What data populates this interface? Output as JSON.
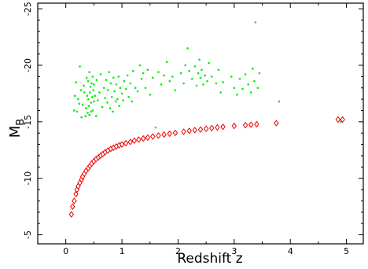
{
  "chart_data": {
    "type": "scatter",
    "title": "",
    "xlabel": "Redshift  z",
    "ylabel": "M",
    "ylabel_subscript": "B",
    "xlim": [
      -0.5,
      5.3
    ],
    "ylim": [
      -4.2,
      -25.5
    ],
    "y_axis_inverted": true,
    "grid": false,
    "legend": "none",
    "x_ticks": [
      0,
      1,
      2,
      3,
      4,
      5
    ],
    "x_tick_labels": [
      "0",
      "1",
      "2",
      "3",
      "4",
      "5"
    ],
    "y_ticks": [
      -5,
      -10,
      -15,
      -20,
      -25
    ],
    "y_tick_labels": [
      "-5",
      "-10",
      "-15",
      "-20",
      "-25"
    ],
    "series": [
      {
        "color": "#00ee00",
        "marker": "dot",
        "values": [
          [
            0.15,
            -16.0
          ],
          [
            0.16,
            -17.3
          ],
          [
            0.18,
            -18.5
          ],
          [
            0.2,
            -15.9
          ],
          [
            0.22,
            -17.0
          ],
          [
            0.24,
            -16.6
          ],
          [
            0.25,
            -19.9
          ],
          [
            0.27,
            -17.8
          ],
          [
            0.28,
            -15.4
          ],
          [
            0.3,
            -16.5
          ],
          [
            0.32,
            -18.2
          ],
          [
            0.33,
            -17.6
          ],
          [
            0.35,
            -15.5
          ],
          [
            0.36,
            -16.2
          ],
          [
            0.37,
            -18.9
          ],
          [
            0.38,
            -17.3
          ],
          [
            0.39,
            -15.8
          ],
          [
            0.4,
            -17.0
          ],
          [
            0.4,
            -18.6
          ],
          [
            0.41,
            -16.4
          ],
          [
            0.42,
            -19.4
          ],
          [
            0.42,
            -15.6
          ],
          [
            0.43,
            -17.6
          ],
          [
            0.44,
            -18.1
          ],
          [
            0.45,
            -16.7
          ],
          [
            0.45,
            -15.9
          ],
          [
            0.46,
            -18.4
          ],
          [
            0.47,
            -17.2
          ],
          [
            0.48,
            -19.0
          ],
          [
            0.48,
            -16.0
          ],
          [
            0.49,
            -17.8
          ],
          [
            0.5,
            -16.8
          ],
          [
            0.5,
            -18.3
          ],
          [
            0.52,
            -17.3
          ],
          [
            0.54,
            -15.5
          ],
          [
            0.55,
            -18.7
          ],
          [
            0.57,
            -16.9
          ],
          [
            0.6,
            -17.6
          ],
          [
            0.62,
            -19.2
          ],
          [
            0.65,
            -16.3
          ],
          [
            0.68,
            -18.0
          ],
          [
            0.7,
            -17.1
          ],
          [
            0.72,
            -18.7
          ],
          [
            0.74,
            -16.7
          ],
          [
            0.75,
            -17.8
          ],
          [
            0.77,
            -19.4
          ],
          [
            0.79,
            -16.2
          ],
          [
            0.8,
            -18.4
          ],
          [
            0.82,
            -17.2
          ],
          [
            0.84,
            -15.9
          ],
          [
            0.85,
            -18.9
          ],
          [
            0.87,
            -17.7
          ],
          [
            0.89,
            -16.8
          ],
          [
            0.9,
            -18.3
          ],
          [
            0.92,
            -17.0
          ],
          [
            0.94,
            -19.0
          ],
          [
            0.95,
            -16.4
          ],
          [
            0.97,
            -18.0
          ],
          [
            1.0,
            -17.5
          ],
          [
            1.02,
            -16.9
          ],
          [
            1.04,
            -18.6
          ],
          [
            1.07,
            -17.9
          ],
          [
            1.1,
            -19.1
          ],
          [
            1.12,
            -17.2
          ],
          [
            1.15,
            -18.4
          ],
          [
            1.18,
            -16.8
          ],
          [
            1.2,
            -19.5
          ],
          [
            1.24,
            -18.0
          ],
          [
            1.28,
            -17.7
          ],
          [
            1.32,
            -20.0
          ],
          [
            1.35,
            -18.8
          ],
          [
            1.38,
            -19.3
          ],
          [
            1.42,
            -18.0
          ],
          [
            1.46,
            -19.6
          ],
          [
            1.5,
            -17.4
          ],
          [
            1.55,
            -18.9
          ],
          [
            1.6,
            -14.5
          ],
          [
            1.65,
            -19.4
          ],
          [
            1.7,
            -18.3
          ],
          [
            1.75,
            -19.1
          ],
          [
            1.8,
            -20.3
          ],
          [
            1.85,
            -18.6
          ],
          [
            1.9,
            -19.0
          ],
          [
            1.95,
            -17.8
          ],
          [
            2.05,
            -19.3
          ],
          [
            2.1,
            -18.4
          ],
          [
            2.13,
            -20.0
          ],
          [
            2.17,
            -21.5
          ],
          [
            2.2,
            -19.5
          ],
          [
            2.25,
            -18.8
          ],
          [
            2.3,
            -19.9
          ],
          [
            2.33,
            -18.2
          ],
          [
            2.36,
            -19.3
          ],
          [
            2.38,
            -20.5
          ],
          [
            2.4,
            -18.9
          ],
          [
            2.42,
            -19.6
          ],
          [
            2.45,
            -18.3
          ],
          [
            2.48,
            -19.1
          ],
          [
            2.52,
            -18.6
          ],
          [
            2.55,
            -20.2
          ],
          [
            2.6,
            -19.0
          ],
          [
            2.68,
            -18.4
          ],
          [
            2.72,
            -19.6
          ],
          [
            2.76,
            -17.6
          ],
          [
            2.8,
            -18.5
          ],
          [
            2.95,
            -19.0
          ],
          [
            3.0,
            -18.0
          ],
          [
            3.05,
            -17.4
          ],
          [
            3.1,
            -18.8
          ],
          [
            3.15,
            -17.9
          ],
          [
            3.2,
            -19.2
          ],
          [
            3.25,
            -18.3
          ],
          [
            3.3,
            -17.6
          ],
          [
            3.33,
            -19.7
          ],
          [
            3.36,
            -18.6
          ],
          [
            3.38,
            -23.8
          ],
          [
            3.42,
            -18.0
          ],
          [
            3.45,
            -19.3
          ],
          [
            3.8,
            -16.8
          ],
          [
            4.9,
            -15.0
          ]
        ]
      },
      {
        "color": "#ee0000",
        "marker": "diamond",
        "values": [
          [
            0.1,
            -6.8
          ],
          [
            0.12,
            -7.5
          ],
          [
            0.15,
            -8.0
          ],
          [
            0.18,
            -8.6
          ],
          [
            0.2,
            -9.0
          ],
          [
            0.22,
            -9.3
          ],
          [
            0.25,
            -9.6
          ],
          [
            0.28,
            -9.9
          ],
          [
            0.3,
            -10.15
          ],
          [
            0.33,
            -10.4
          ],
          [
            0.36,
            -10.65
          ],
          [
            0.4,
            -10.9
          ],
          [
            0.43,
            -11.1
          ],
          [
            0.46,
            -11.3
          ],
          [
            0.5,
            -11.5
          ],
          [
            0.54,
            -11.7
          ],
          [
            0.58,
            -11.85
          ],
          [
            0.62,
            -12.0
          ],
          [
            0.66,
            -12.15
          ],
          [
            0.7,
            -12.3
          ],
          [
            0.75,
            -12.45
          ],
          [
            0.8,
            -12.6
          ],
          [
            0.85,
            -12.7
          ],
          [
            0.9,
            -12.82
          ],
          [
            0.95,
            -12.92
          ],
          [
            1.0,
            -13.0
          ],
          [
            1.07,
            -13.1
          ],
          [
            1.15,
            -13.22
          ],
          [
            1.22,
            -13.33
          ],
          [
            1.3,
            -13.43
          ],
          [
            1.38,
            -13.52
          ],
          [
            1.46,
            -13.6
          ],
          [
            1.55,
            -13.7
          ],
          [
            1.65,
            -13.78
          ],
          [
            1.75,
            -13.87
          ],
          [
            1.85,
            -13.95
          ],
          [
            1.95,
            -14.02
          ],
          [
            2.1,
            -14.12
          ],
          [
            2.2,
            -14.2
          ],
          [
            2.3,
            -14.26
          ],
          [
            2.4,
            -14.32
          ],
          [
            2.5,
            -14.38
          ],
          [
            2.6,
            -14.44
          ],
          [
            2.7,
            -14.5
          ],
          [
            2.8,
            -14.55
          ],
          [
            3.0,
            -14.63
          ],
          [
            3.2,
            -14.7
          ],
          [
            3.3,
            -14.74
          ],
          [
            3.4,
            -14.78
          ],
          [
            3.75,
            -14.88
          ],
          [
            4.85,
            -15.2
          ],
          [
            4.93,
            -15.2
          ]
        ]
      }
    ]
  }
}
